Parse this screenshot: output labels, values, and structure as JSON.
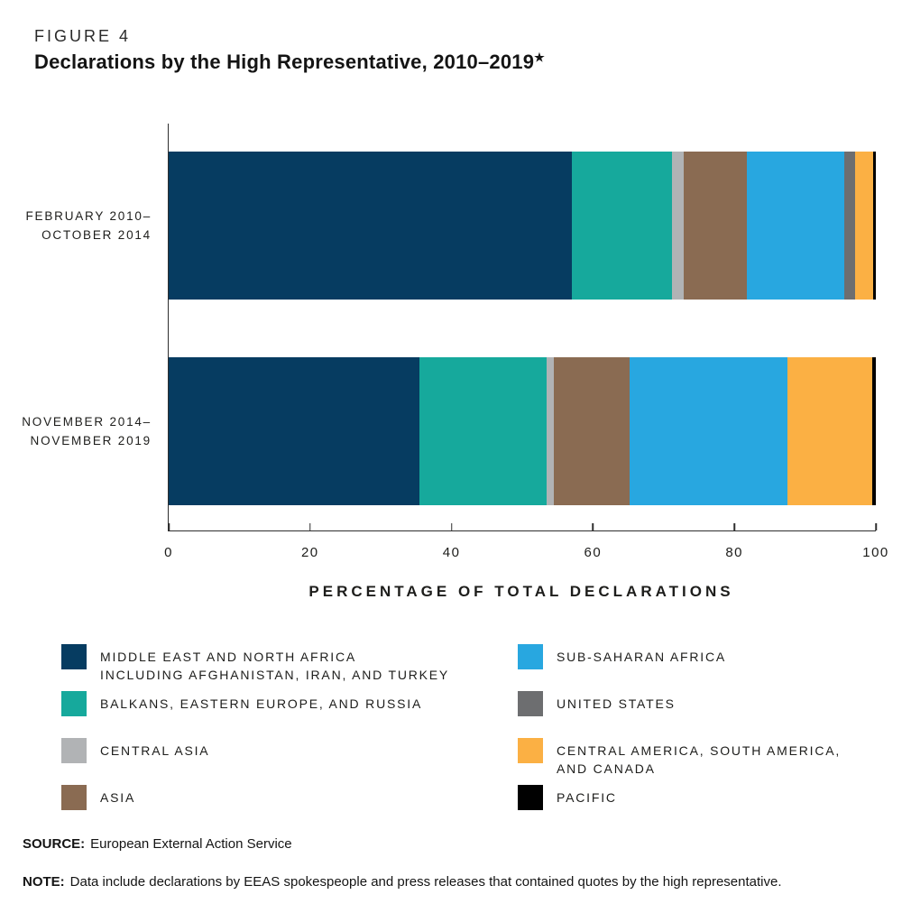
{
  "figure_label": "FIGURE 4",
  "title": "Declarations by the High Representative, 2010–2019",
  "title_star": "★",
  "chart_data": {
    "type": "bar",
    "orientation": "horizontal",
    "stacked": true,
    "categories": [
      [
        "FEBRUARY 2010–",
        "OCTOBER 2014"
      ],
      [
        "NOVEMBER 2014–",
        "NOVEMBER 2019"
      ]
    ],
    "xlabel": "PERCENTAGE OF TOTAL DECLARATIONS",
    "xlim": [
      0,
      100
    ],
    "xticks": [
      0,
      20,
      40,
      60,
      80,
      100
    ],
    "grid": false,
    "legend_position": "below, two columns (first four series left, last four right)",
    "series": [
      {
        "name": "MIDDLE EAST AND NORTH AFRICA INCLUDING AFGHANISTAN, IRAN, AND TURKEY",
        "label_lines": [
          "MIDDLE EAST AND NORTH AFRICA",
          "INCLUDING AFGHANISTAN, IRAN, AND TURKEY"
        ],
        "color": "#063c61",
        "values": [
          57.0,
          35.5
        ]
      },
      {
        "name": "BALKANS, EASTERN EUROPE, AND RUSSIA",
        "label_lines": [
          "BALKANS, EASTERN EUROPE, AND RUSSIA"
        ],
        "color": "#16a99c",
        "values": [
          14.2,
          17.9
        ]
      },
      {
        "name": "CENTRAL ASIA",
        "label_lines": [
          "CENTRAL ASIA"
        ],
        "color": "#b1b3b5",
        "values": [
          1.6,
          1.1
        ]
      },
      {
        "name": "ASIA",
        "label_lines": [
          "ASIA"
        ],
        "color": "#8a6b52",
        "values": [
          9.0,
          10.7
        ]
      },
      {
        "name": "SUB-SAHARAN AFRICA",
        "label_lines": [
          "SUB-SAHARAN AFRICA"
        ],
        "color": "#28a7e0",
        "values": [
          13.7,
          22.3
        ]
      },
      {
        "name": "UNITED STATES",
        "label_lines": [
          "UNITED STATES"
        ],
        "color": "#6d6e70",
        "values": [
          1.6,
          0
        ]
      },
      {
        "name": "CENTRAL AMERICA, SOUTH AMERICA, AND CANADA",
        "label_lines": [
          "CENTRAL AMERICA, SOUTH AMERICA,",
          "AND CANADA"
        ],
        "color": "#fbb044",
        "values": [
          2.5,
          12.0
        ]
      },
      {
        "name": "PACIFIC",
        "label_lines": [
          "PACIFIC"
        ],
        "color": "#010101",
        "values": [
          0.4,
          0.5
        ]
      }
    ]
  },
  "source": {
    "label": "SOURCE:",
    "text": "European External Action Service"
  },
  "note": {
    "label": "NOTE:",
    "text": "Data include declarations by EEAS spokespeople and press releases that contained quotes by the high representative."
  }
}
